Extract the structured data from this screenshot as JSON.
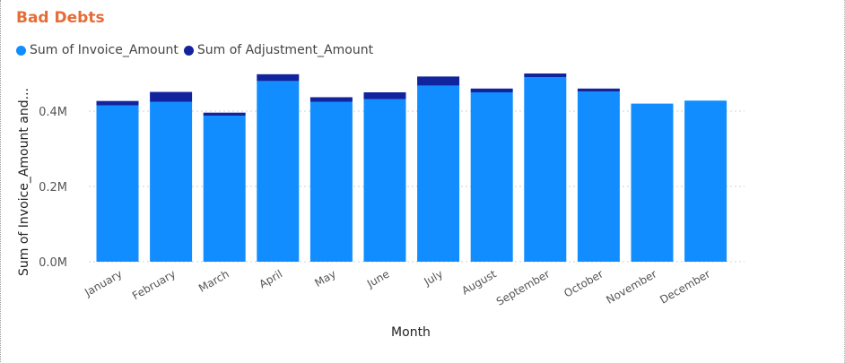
{
  "chart_data": {
    "type": "bar",
    "stacked": true,
    "title": "Bad Debts",
    "xlabel": "Month",
    "ylabel": "Sum of Invoice_Amount and...",
    "categories": [
      "January",
      "February",
      "March",
      "April",
      "May",
      "June",
      "July",
      "August",
      "September",
      "October",
      "November",
      "December"
    ],
    "series": [
      {
        "name": "Sum of Invoice_Amount",
        "color": "#118dff",
        "values": [
          0.415,
          0.425,
          0.388,
          0.48,
          0.425,
          0.432,
          0.468,
          0.45,
          0.49,
          0.452,
          0.42,
          0.428
        ]
      },
      {
        "name": "Sum of Adjustment_Amount",
        "color": "#12239e",
        "values": [
          0.012,
          0.026,
          0.008,
          0.018,
          0.012,
          0.018,
          0.024,
          0.01,
          0.01,
          0.008,
          0.0,
          0.0
        ]
      }
    ],
    "yticks": [
      "0.0M",
      "0.2M",
      "0.4M"
    ],
    "ytick_values": [
      0,
      0.2,
      0.4
    ],
    "ylim": [
      0,
      0.5
    ],
    "grid": true,
    "legend_position": "top-left"
  }
}
